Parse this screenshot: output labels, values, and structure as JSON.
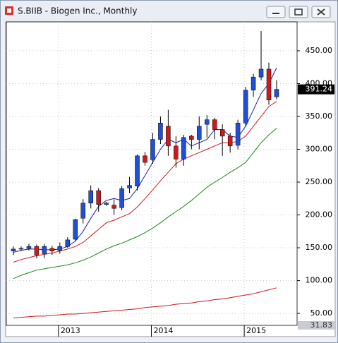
{
  "chart_data": {
    "type": "candlestick",
    "title": "S.BIIB - Biogen Inc., Monthly",
    "categories": [
      null,
      null,
      null,
      null,
      null,
      null,
      "2013",
      null,
      null,
      null,
      null,
      null,
      null,
      null,
      null,
      null,
      null,
      null,
      "2014",
      null,
      null,
      null,
      null,
      null,
      null,
      null,
      null,
      null,
      null,
      null,
      "2015",
      null,
      null,
      null,
      null
    ],
    "candles": {
      "open": [
        145,
        148,
        149,
        152,
        141,
        149,
        146,
        152,
        163,
        195,
        218,
        237,
        216,
        215,
        211,
        241,
        244,
        290,
        284,
        315,
        335,
        305,
        285,
        320,
        315,
        338,
        345,
        330,
        320,
        306,
        340,
        390,
        410,
        422,
        380
      ],
      "high": [
        152,
        152,
        156,
        155,
        156,
        153,
        158,
        166,
        194,
        224,
        245,
        241,
        220,
        224,
        244,
        258,
        292,
        296,
        325,
        350,
        360,
        320,
        322,
        322,
        350,
        352,
        348,
        338,
        325,
        345,
        395,
        415,
        480,
        432,
        405
      ],
      "low": [
        139,
        145,
        146,
        134,
        134,
        139,
        141,
        150,
        161,
        187,
        210,
        205,
        214,
        200,
        207,
        233,
        237,
        275,
        278,
        308,
        290,
        272,
        275,
        300,
        300,
        318,
        315,
        290,
        295,
        300,
        335,
        380,
        405,
        368,
        376
      ],
      "close": [
        148,
        149,
        152,
        139,
        152,
        145,
        152,
        162,
        193,
        218,
        237,
        216,
        218,
        210,
        240,
        245,
        290,
        280,
        315,
        340,
        305,
        285,
        318,
        315,
        335,
        345,
        330,
        320,
        305,
        340,
        390,
        410,
        422,
        375,
        391.24
      ],
      "up_color": "#1f4fd8",
      "down_color": "#d01818"
    },
    "lines": [
      {
        "color": "#1a1aa8",
        "values": [
          143,
          146,
          148,
          148,
          147,
          147,
          148,
          152,
          160,
          175,
          195,
          213,
          222,
          225,
          222,
          225,
          240,
          260,
          280,
          300,
          315,
          310,
          315,
          305,
          310,
          315,
          330,
          330,
          320,
          318,
          335,
          360,
          385,
          400,
          424
        ]
      },
      {
        "color": "#d01818",
        "values": [
          128,
          132,
          135,
          138,
          140,
          142,
          145,
          148,
          152,
          158,
          168,
          178,
          188,
          192,
          197,
          202,
          212,
          225,
          238,
          252,
          265,
          278,
          285,
          290,
          295,
          300,
          305,
          310,
          310,
          312,
          320,
          335,
          350,
          365,
          373
        ]
      },
      {
        "color": "#1a8a1a",
        "values": [
          103,
          108,
          112,
          116,
          118,
          120,
          122,
          124,
          127,
          131,
          136,
          142,
          148,
          153,
          157,
          162,
          167,
          173,
          180,
          188,
          197,
          205,
          213,
          222,
          232,
          242,
          250,
          257,
          265,
          272,
          280,
          295,
          310,
          322,
          332
        ]
      },
      {
        "color": "#c81818",
        "values": [
          43,
          44,
          45,
          46,
          46,
          47,
          48,
          49,
          49,
          50,
          51,
          52,
          53,
          54,
          55,
          56,
          57,
          59,
          60,
          61,
          62,
          64,
          65,
          66,
          68,
          69,
          71,
          72,
          74,
          76,
          78,
          80,
          83,
          86,
          89
        ]
      }
    ],
    "ylim": [
      31.83,
      494
    ],
    "yticks": [
      {
        "value": 50,
        "label": "50.00"
      },
      {
        "value": 100,
        "label": "100.00"
      },
      {
        "value": 150,
        "label": "150.00"
      },
      {
        "value": 200,
        "label": "200.00"
      },
      {
        "value": 250,
        "label": "250.00"
      },
      {
        "value": 300,
        "label": "300.00"
      },
      {
        "value": 350,
        "label": "350.00"
      },
      {
        "value": 400,
        "label": "400.00"
      },
      {
        "value": 450,
        "label": "450.00"
      }
    ],
    "last_price": {
      "value": 391.24,
      "label": "391.24"
    },
    "axis_min": {
      "value": 31.83,
      "label": "31.83"
    },
    "grid": true
  }
}
